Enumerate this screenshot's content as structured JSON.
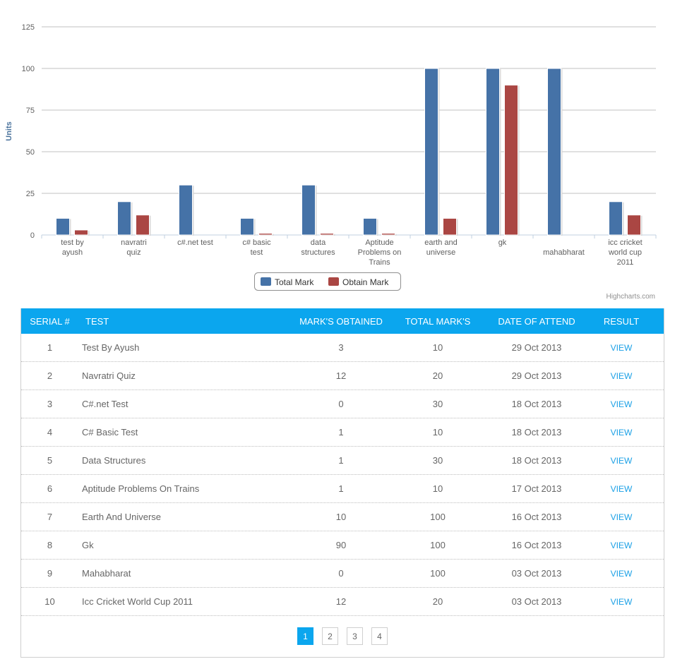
{
  "chart_data": {
    "type": "bar",
    "categories": [
      "test by ayush",
      "navratri quiz",
      "c#.net test",
      "c# basic test",
      "data structures",
      "Aptitude Problems on Trains",
      "earth and universe",
      "gk",
      "mahabharat",
      "icc cricket world cup 2011"
    ],
    "series": [
      {
        "name": "Total Mark",
        "values": [
          10,
          20,
          30,
          10,
          30,
          10,
          100,
          100,
          100,
          20
        ],
        "color": "#4572a7"
      },
      {
        "name": "Obtain Mark",
        "values": [
          3,
          12,
          0,
          1,
          1,
          1,
          10,
          90,
          0,
          12
        ],
        "color": "#aa4643"
      }
    ],
    "ylabel": "Units",
    "xlabel": "",
    "ylim": [
      0,
      125
    ],
    "yticks": [
      0,
      25,
      50,
      75,
      100,
      125
    ],
    "grid": true,
    "legend": "bottom-center",
    "credit": "Highcharts.com"
  },
  "table": {
    "headers": {
      "serial": "SERIAL #",
      "test": "TEST",
      "obtained": "MARK'S OBTAINED",
      "total": "TOTAL MARK'S",
      "date": "DATE OF ATTEND",
      "result": "RESULT"
    },
    "rows": [
      {
        "serial": "1",
        "test": "Test By Ayush",
        "obtained": "3",
        "total": "10",
        "date": "29 Oct 2013",
        "result": "VIEW"
      },
      {
        "serial": "2",
        "test": "Navratri Quiz",
        "obtained": "12",
        "total": "20",
        "date": "29 Oct 2013",
        "result": "VIEW"
      },
      {
        "serial": "3",
        "test": "C#.net Test",
        "obtained": "0",
        "total": "30",
        "date": "18 Oct 2013",
        "result": "VIEW"
      },
      {
        "serial": "4",
        "test": "C# Basic Test",
        "obtained": "1",
        "total": "10",
        "date": "18 Oct 2013",
        "result": "VIEW"
      },
      {
        "serial": "5",
        "test": "Data Structures",
        "obtained": "1",
        "total": "30",
        "date": "18 Oct 2013",
        "result": "VIEW"
      },
      {
        "serial": "6",
        "test": "Aptitude Problems On Trains",
        "obtained": "1",
        "total": "10",
        "date": "17 Oct 2013",
        "result": "VIEW"
      },
      {
        "serial": "7",
        "test": "Earth And Universe",
        "obtained": "10",
        "total": "100",
        "date": "16 Oct 2013",
        "result": "VIEW"
      },
      {
        "serial": "8",
        "test": "Gk",
        "obtained": "90",
        "total": "100",
        "date": "16 Oct 2013",
        "result": "VIEW"
      },
      {
        "serial": "9",
        "test": "Mahabharat",
        "obtained": "0",
        "total": "100",
        "date": "03 Oct 2013",
        "result": "VIEW"
      },
      {
        "serial": "10",
        "test": "Icc Cricket World Cup 2011",
        "obtained": "12",
        "total": "20",
        "date": "03 Oct 2013",
        "result": "VIEW"
      }
    ]
  },
  "pagination": {
    "pages": [
      "1",
      "2",
      "3",
      "4"
    ],
    "active": "1"
  },
  "colors": {
    "header_bg": "#0ba6ee",
    "link": "#1aa0e6"
  }
}
